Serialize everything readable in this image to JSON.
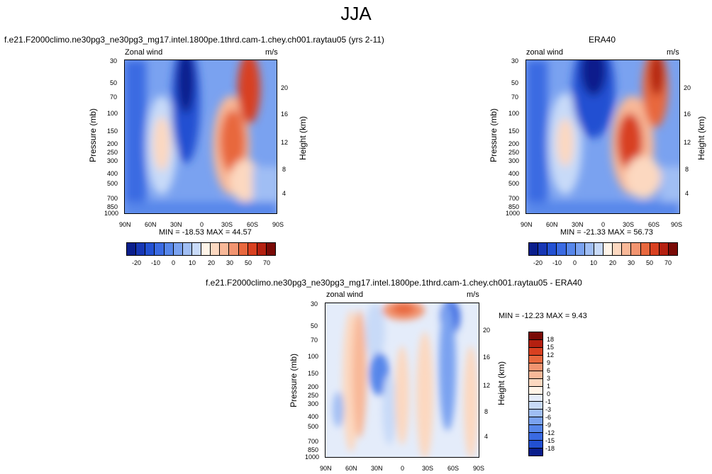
{
  "figure": {
    "title": "JJA",
    "diff_title": "f.e21.F2000climo.ne30pg3_ne30pg3_mg17.intel.1800pe.1thrd.cam-1.chey.ch001.raytau05 - ERA40"
  },
  "panels": [
    {
      "title": "f.e21.F2000climo.ne30pg3_ne30pg3_mg17.intel.1800pe.1thrd.cam-1.chey.ch001.raytau05 (yrs 2-11)",
      "left_label": "Zonal wind",
      "right_label": "m/s",
      "minmax": "MIN = -18.53   MAX =  44.57"
    },
    {
      "title": "ERA40",
      "left_label": "zonal wind",
      "right_label": "m/s",
      "minmax": "MIN = -21.33   MAX =  56.73"
    },
    {
      "left_label": "zonal wind",
      "right_label": "m/s",
      "minmax": "MIN = -12.23   MAX =   9.43"
    }
  ],
  "axes": {
    "ylabel": "Pressure (mb)",
    "ylabel_right": "Height (km)",
    "pressure_ticks": [
      "30",
      "50",
      "70",
      "100",
      "150",
      "200",
      "250",
      "300",
      "400",
      "500",
      "700",
      "850",
      "1000"
    ],
    "height_ticks": [
      "20",
      "16",
      "12",
      "8",
      "4"
    ],
    "lat_ticks": [
      "90N",
      "60N",
      "30N",
      "0",
      "30S",
      "60S",
      "90S"
    ]
  },
  "colorbars": {
    "main": {
      "labels": [
        "-20",
        "-10",
        "0",
        "10",
        "20",
        "30",
        "50",
        "70"
      ],
      "colors": [
        "#0a1e8c",
        "#1636b4",
        "#2250d2",
        "#3a6ae2",
        "#5686ea",
        "#7aa2f0",
        "#a0beF4",
        "#c8daf8",
        "#fff4e8",
        "#fcd8c0",
        "#f8b898",
        "#f29470",
        "#e8683e",
        "#d84020",
        "#b42010",
        "#7a0a06"
      ]
    },
    "diff": {
      "labels": [
        "18",
        "15",
        "12",
        "9",
        "6",
        "3",
        "1",
        "0",
        "-1",
        "-3",
        "-6",
        "-9",
        "-12",
        "-15",
        "-18"
      ],
      "colors": [
        "#7a0a06",
        "#b42010",
        "#d84020",
        "#e8683e",
        "#f29470",
        "#f8b898",
        "#fcd8c0",
        "#fff4e8",
        "#e4ecfa",
        "#c8daf8",
        "#a0bef4",
        "#7aa2f0",
        "#5686ea",
        "#3a6ae2",
        "#2250d2",
        "#0a1e8c"
      ]
    }
  },
  "chart_data": [
    {
      "type": "heatmap",
      "title": "f.e21.F2000climo.ne30pg3_ne30pg3_mg17.intel.1800pe.1thrd.cam-1.chey.ch001.raytau05 (yrs 2-11)",
      "variable": "Zonal wind",
      "units": "m/s",
      "x": [
        "90N",
        "60N",
        "30N",
        "0",
        "30S",
        "60S",
        "90S"
      ],
      "y_pressure_mb": [
        30,
        50,
        70,
        100,
        150,
        200,
        250,
        300,
        400,
        500,
        700,
        850,
        1000
      ],
      "min": -18.53,
      "max": 44.57,
      "features": [
        {
          "lat": 45,
          "p": 200,
          "value": 20
        },
        {
          "lat": 15,
          "p": 40,
          "value": -15
        },
        {
          "lat": -30,
          "p": 200,
          "value": 35
        },
        {
          "lat": -45,
          "p": 40,
          "value": 40
        }
      ],
      "levels": [
        -20,
        -15,
        -10,
        -5,
        0,
        5,
        10,
        15,
        20,
        25,
        30,
        40,
        50,
        60,
        70
      ]
    },
    {
      "type": "heatmap",
      "title": "ERA40",
      "variable": "zonal wind",
      "units": "m/s",
      "x": [
        "90N",
        "60N",
        "30N",
        "0",
        "30S",
        "60S",
        "90S"
      ],
      "y_pressure_mb": [
        30,
        50,
        70,
        100,
        150,
        200,
        250,
        300,
        400,
        500,
        700,
        850,
        1000
      ],
      "min": -21.33,
      "max": 56.73,
      "features": [
        {
          "lat": 45,
          "p": 200,
          "value": 20
        },
        {
          "lat": 20,
          "p": 40,
          "value": -20
        },
        {
          "lat": -30,
          "p": 200,
          "value": 45
        },
        {
          "lat": -50,
          "p": 40,
          "value": 55
        }
      ],
      "levels": [
        -20,
        -15,
        -10,
        -5,
        0,
        5,
        10,
        15,
        20,
        25,
        30,
        40,
        50,
        60,
        70
      ]
    },
    {
      "type": "heatmap",
      "title": "f.e21.F2000climo.ne30pg3_ne30pg3_mg17.intel.1800pe.1thrd.cam-1.chey.ch001.raytau05 - ERA40",
      "variable": "zonal wind",
      "units": "m/s",
      "x": [
        "90N",
        "60N",
        "30N",
        "0",
        "30S",
        "60S",
        "90S"
      ],
      "y_pressure_mb": [
        30,
        50,
        70,
        100,
        150,
        200,
        250,
        300,
        400,
        500,
        700,
        850,
        1000
      ],
      "min": -12.23,
      "max": 9.43,
      "features": [
        {
          "lat": 60,
          "p": 200,
          "value": 5
        },
        {
          "lat": 35,
          "p": 150,
          "value": -8
        },
        {
          "lat": 0,
          "p": 40,
          "value": 9
        },
        {
          "lat": -45,
          "p": 50,
          "value": -10
        }
      ],
      "levels": [
        -18,
        -15,
        -12,
        -9,
        -6,
        -3,
        -1,
        0,
        1,
        3,
        6,
        9,
        12,
        15,
        18
      ]
    }
  ]
}
